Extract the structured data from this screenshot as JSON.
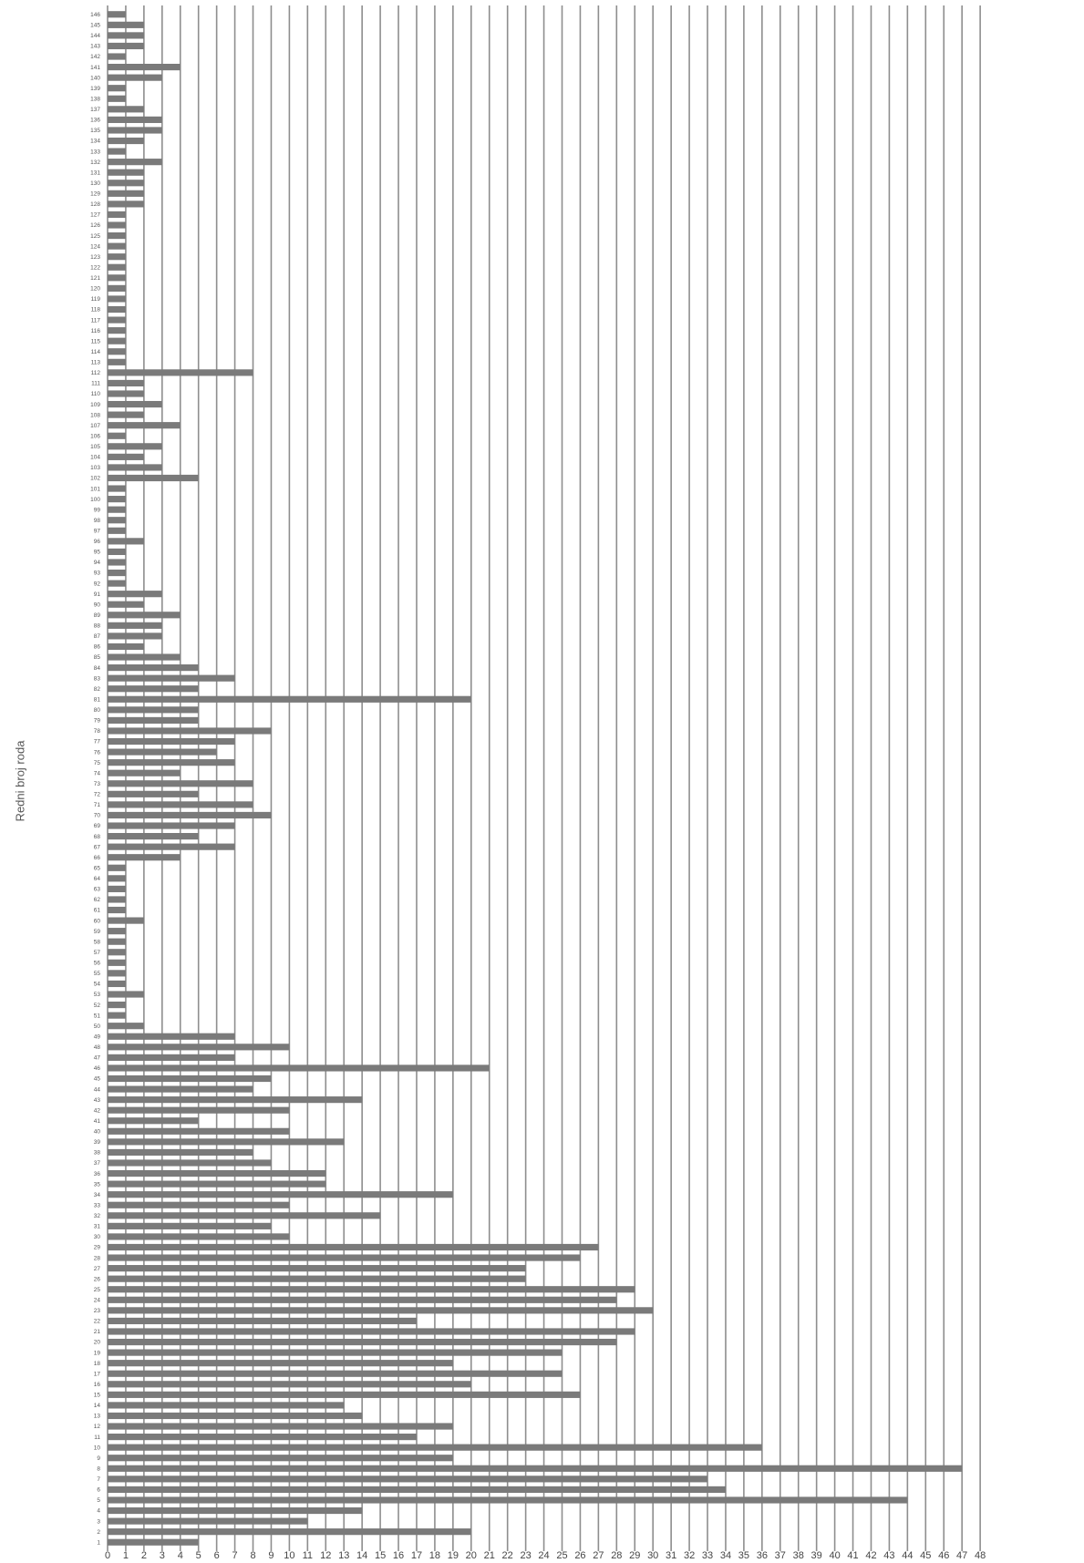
{
  "chart_data": {
    "type": "bar",
    "orientation": "horizontal",
    "title": "",
    "xlabel": "",
    "ylabel": "Redni broj roda",
    "xlim": [
      0,
      48
    ],
    "x_ticks": [
      0,
      1,
      2,
      3,
      4,
      5,
      6,
      7,
      8,
      9,
      10,
      11,
      12,
      13,
      14,
      15,
      16,
      17,
      18,
      19,
      20,
      21,
      22,
      23,
      24,
      25,
      26,
      27,
      28,
      29,
      30,
      31,
      32,
      33,
      34,
      35,
      36,
      37,
      38,
      39,
      40,
      41,
      42,
      43,
      44,
      45,
      46,
      47,
      48
    ],
    "grid": "vertical",
    "legend": "none",
    "bar_color": "#7a7a7a",
    "grid_color": "#8e8e8e",
    "categories": [
      1,
      2,
      3,
      4,
      5,
      6,
      7,
      8,
      9,
      10,
      11,
      12,
      13,
      14,
      15,
      16,
      17,
      18,
      19,
      20,
      21,
      22,
      23,
      24,
      25,
      26,
      27,
      28,
      29,
      30,
      31,
      32,
      33,
      34,
      35,
      36,
      37,
      38,
      39,
      40,
      41,
      42,
      43,
      44,
      45,
      46,
      47,
      48,
      49,
      50,
      51,
      52,
      53,
      54,
      55,
      56,
      57,
      58,
      59,
      60,
      61,
      62,
      63,
      64,
      65,
      66,
      67,
      68,
      69,
      70,
      71,
      72,
      73,
      74,
      75,
      76,
      77,
      78,
      79,
      80,
      81,
      82,
      83,
      84,
      85,
      86,
      87,
      88,
      89,
      90,
      91,
      92,
      93,
      94,
      95,
      96,
      97,
      98,
      99,
      100,
      101,
      102,
      103,
      104,
      105,
      106,
      107,
      108,
      109,
      110,
      111,
      112,
      113,
      114,
      115,
      116,
      117,
      118,
      119,
      120,
      121,
      122,
      123,
      124,
      125,
      126,
      127,
      128,
      129,
      130,
      131,
      132,
      133,
      134,
      135,
      136,
      137,
      138,
      139,
      140,
      141,
      142,
      143,
      144,
      145,
      146
    ],
    "values": [
      5,
      20,
      11,
      14,
      44,
      34,
      33,
      47,
      19,
      36,
      17,
      19,
      14,
      13,
      26,
      20,
      25,
      19,
      25,
      28,
      29,
      17,
      30,
      28,
      29,
      23,
      23,
      26,
      27,
      10,
      9,
      15,
      10,
      19,
      12,
      12,
      9,
      8,
      13,
      10,
      5,
      10,
      14,
      8,
      9,
      21,
      7,
      10,
      7,
      2,
      1,
      1,
      2,
      1,
      1,
      1,
      1,
      1,
      1,
      2,
      1,
      1,
      1,
      1,
      1,
      4,
      7,
      5,
      7,
      9,
      8,
      5,
      8,
      4,
      7,
      6,
      7,
      9,
      5,
      5,
      20,
      5,
      7,
      5,
      4,
      2,
      3,
      3,
      4,
      2,
      3,
      1,
      1,
      1,
      1,
      2,
      1,
      1,
      1,
      1,
      1,
      5,
      3,
      2,
      3,
      1,
      4,
      2,
      3,
      2,
      2,
      8,
      1,
      1,
      1,
      1,
      1,
      1,
      1,
      1,
      1,
      1,
      1,
      1,
      1,
      1,
      1,
      2,
      2,
      2,
      2,
      3,
      1,
      2,
      3,
      3,
      2,
      1,
      1,
      3,
      4,
      1,
      2,
      2,
      2,
      1
    ]
  }
}
